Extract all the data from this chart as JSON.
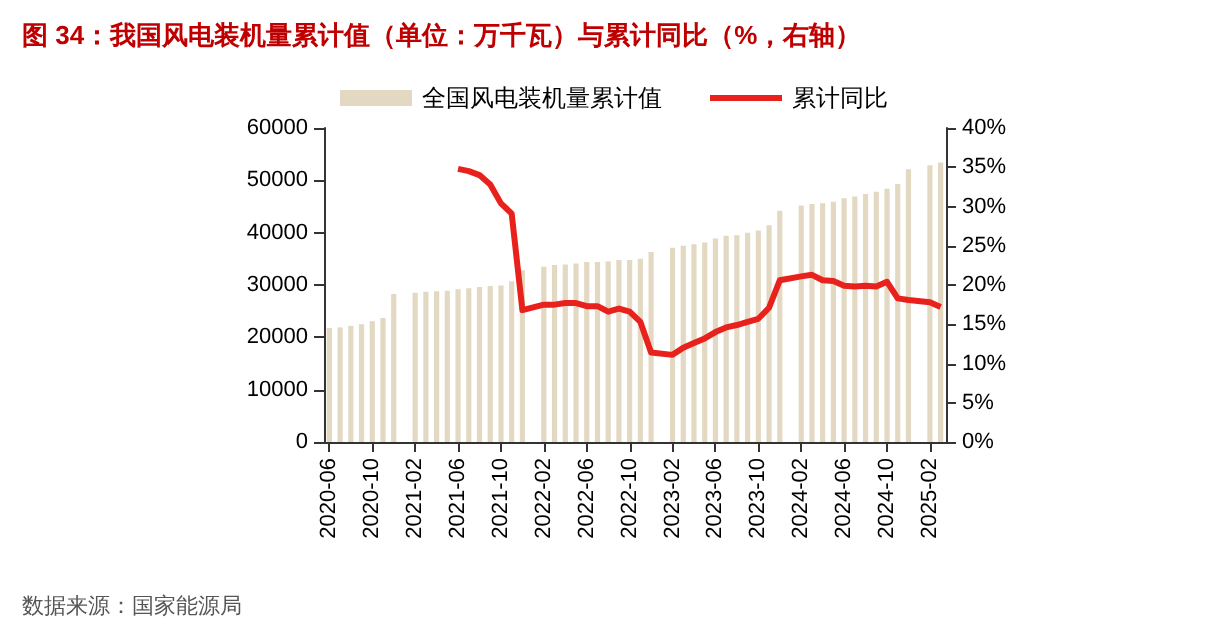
{
  "chart_data": {
    "type": "bar",
    "title": "图 34：我国风电装机量累计值（单位：万千瓦）与累计同比（%，右轴）",
    "categories": [
      "2020-06",
      null,
      null,
      null,
      "2020-10",
      null,
      null,
      null,
      "2021-02",
      null,
      null,
      null,
      "2021-06",
      null,
      null,
      null,
      "2021-10",
      null,
      null,
      null,
      "2022-02",
      null,
      null,
      null,
      "2022-06",
      null,
      null,
      null,
      "2022-10",
      null,
      null,
      null,
      "2023-02",
      null,
      null,
      null,
      "2023-06",
      null,
      null,
      null,
      "2023-10",
      null,
      null,
      null,
      "2024-02",
      null,
      null,
      null,
      "2024-06",
      null,
      null,
      null,
      "2024-10",
      null,
      null,
      null,
      "2025-02",
      null
    ],
    "series": [
      {
        "name": "全国风电装机量累计值",
        "color": "#e3d9c2",
        "values": [
          21800,
          21900,
          22200,
          22500,
          23100,
          23700,
          28300,
          null,
          28500,
          28700,
          28800,
          28900,
          29200,
          29400,
          29600,
          29800,
          29900,
          30700,
          32800,
          null,
          33500,
          33800,
          33900,
          34100,
          34400,
          34400,
          34500,
          34800,
          34800,
          35000,
          36300,
          null,
          37100,
          37500,
          37800,
          38100,
          38900,
          39400,
          39500,
          40000,
          40400,
          41400,
          44200,
          null,
          45200,
          45500,
          45600,
          45900,
          46600,
          46900,
          47400,
          47800,
          48400,
          49300,
          52100,
          null,
          52900,
          53400
        ]
      },
      {
        "name": "累计同比",
        "type": "line",
        "axis": "y2",
        "color": "#e8211d",
        "values": [
          null,
          null,
          null,
          null,
          null,
          null,
          null,
          null,
          null,
          null,
          null,
          null,
          34.8,
          34.5,
          34.0,
          32.8,
          30.4,
          29.1,
          16.8,
          null,
          17.5,
          17.5,
          17.7,
          17.7,
          17.3,
          17.3,
          16.6,
          17.0,
          16.6,
          15.3,
          11.4,
          null,
          11.1,
          12.0,
          12.6,
          13.2,
          14.0,
          14.6,
          14.9,
          15.3,
          15.7,
          17.1,
          20.6,
          null,
          21.1,
          21.3,
          20.6,
          20.5,
          19.9,
          19.8,
          19.9,
          19.8,
          20.4,
          18.3,
          18.1,
          null,
          17.8,
          17.2
        ]
      }
    ],
    "ylim": [
      0,
      60000
    ],
    "yticks": [
      0,
      10000,
      20000,
      30000,
      40000,
      50000,
      60000
    ],
    "y2lim": [
      0,
      40
    ],
    "y2ticks": [
      {
        "value": 0,
        "label": "0%"
      },
      {
        "value": 5,
        "label": "5%"
      },
      {
        "value": 10,
        "label": "10%"
      },
      {
        "value": 15,
        "label": "15%"
      },
      {
        "value": 20,
        "label": "20%"
      },
      {
        "value": 25,
        "label": "25%"
      },
      {
        "value": 30,
        "label": "30%"
      },
      {
        "value": 35,
        "label": "35%"
      },
      {
        "value": 40,
        "label": "40%"
      }
    ],
    "legend": "top",
    "grid": false,
    "marker": "none",
    "annotations": [
      "数据来源：国家能源局"
    ]
  }
}
